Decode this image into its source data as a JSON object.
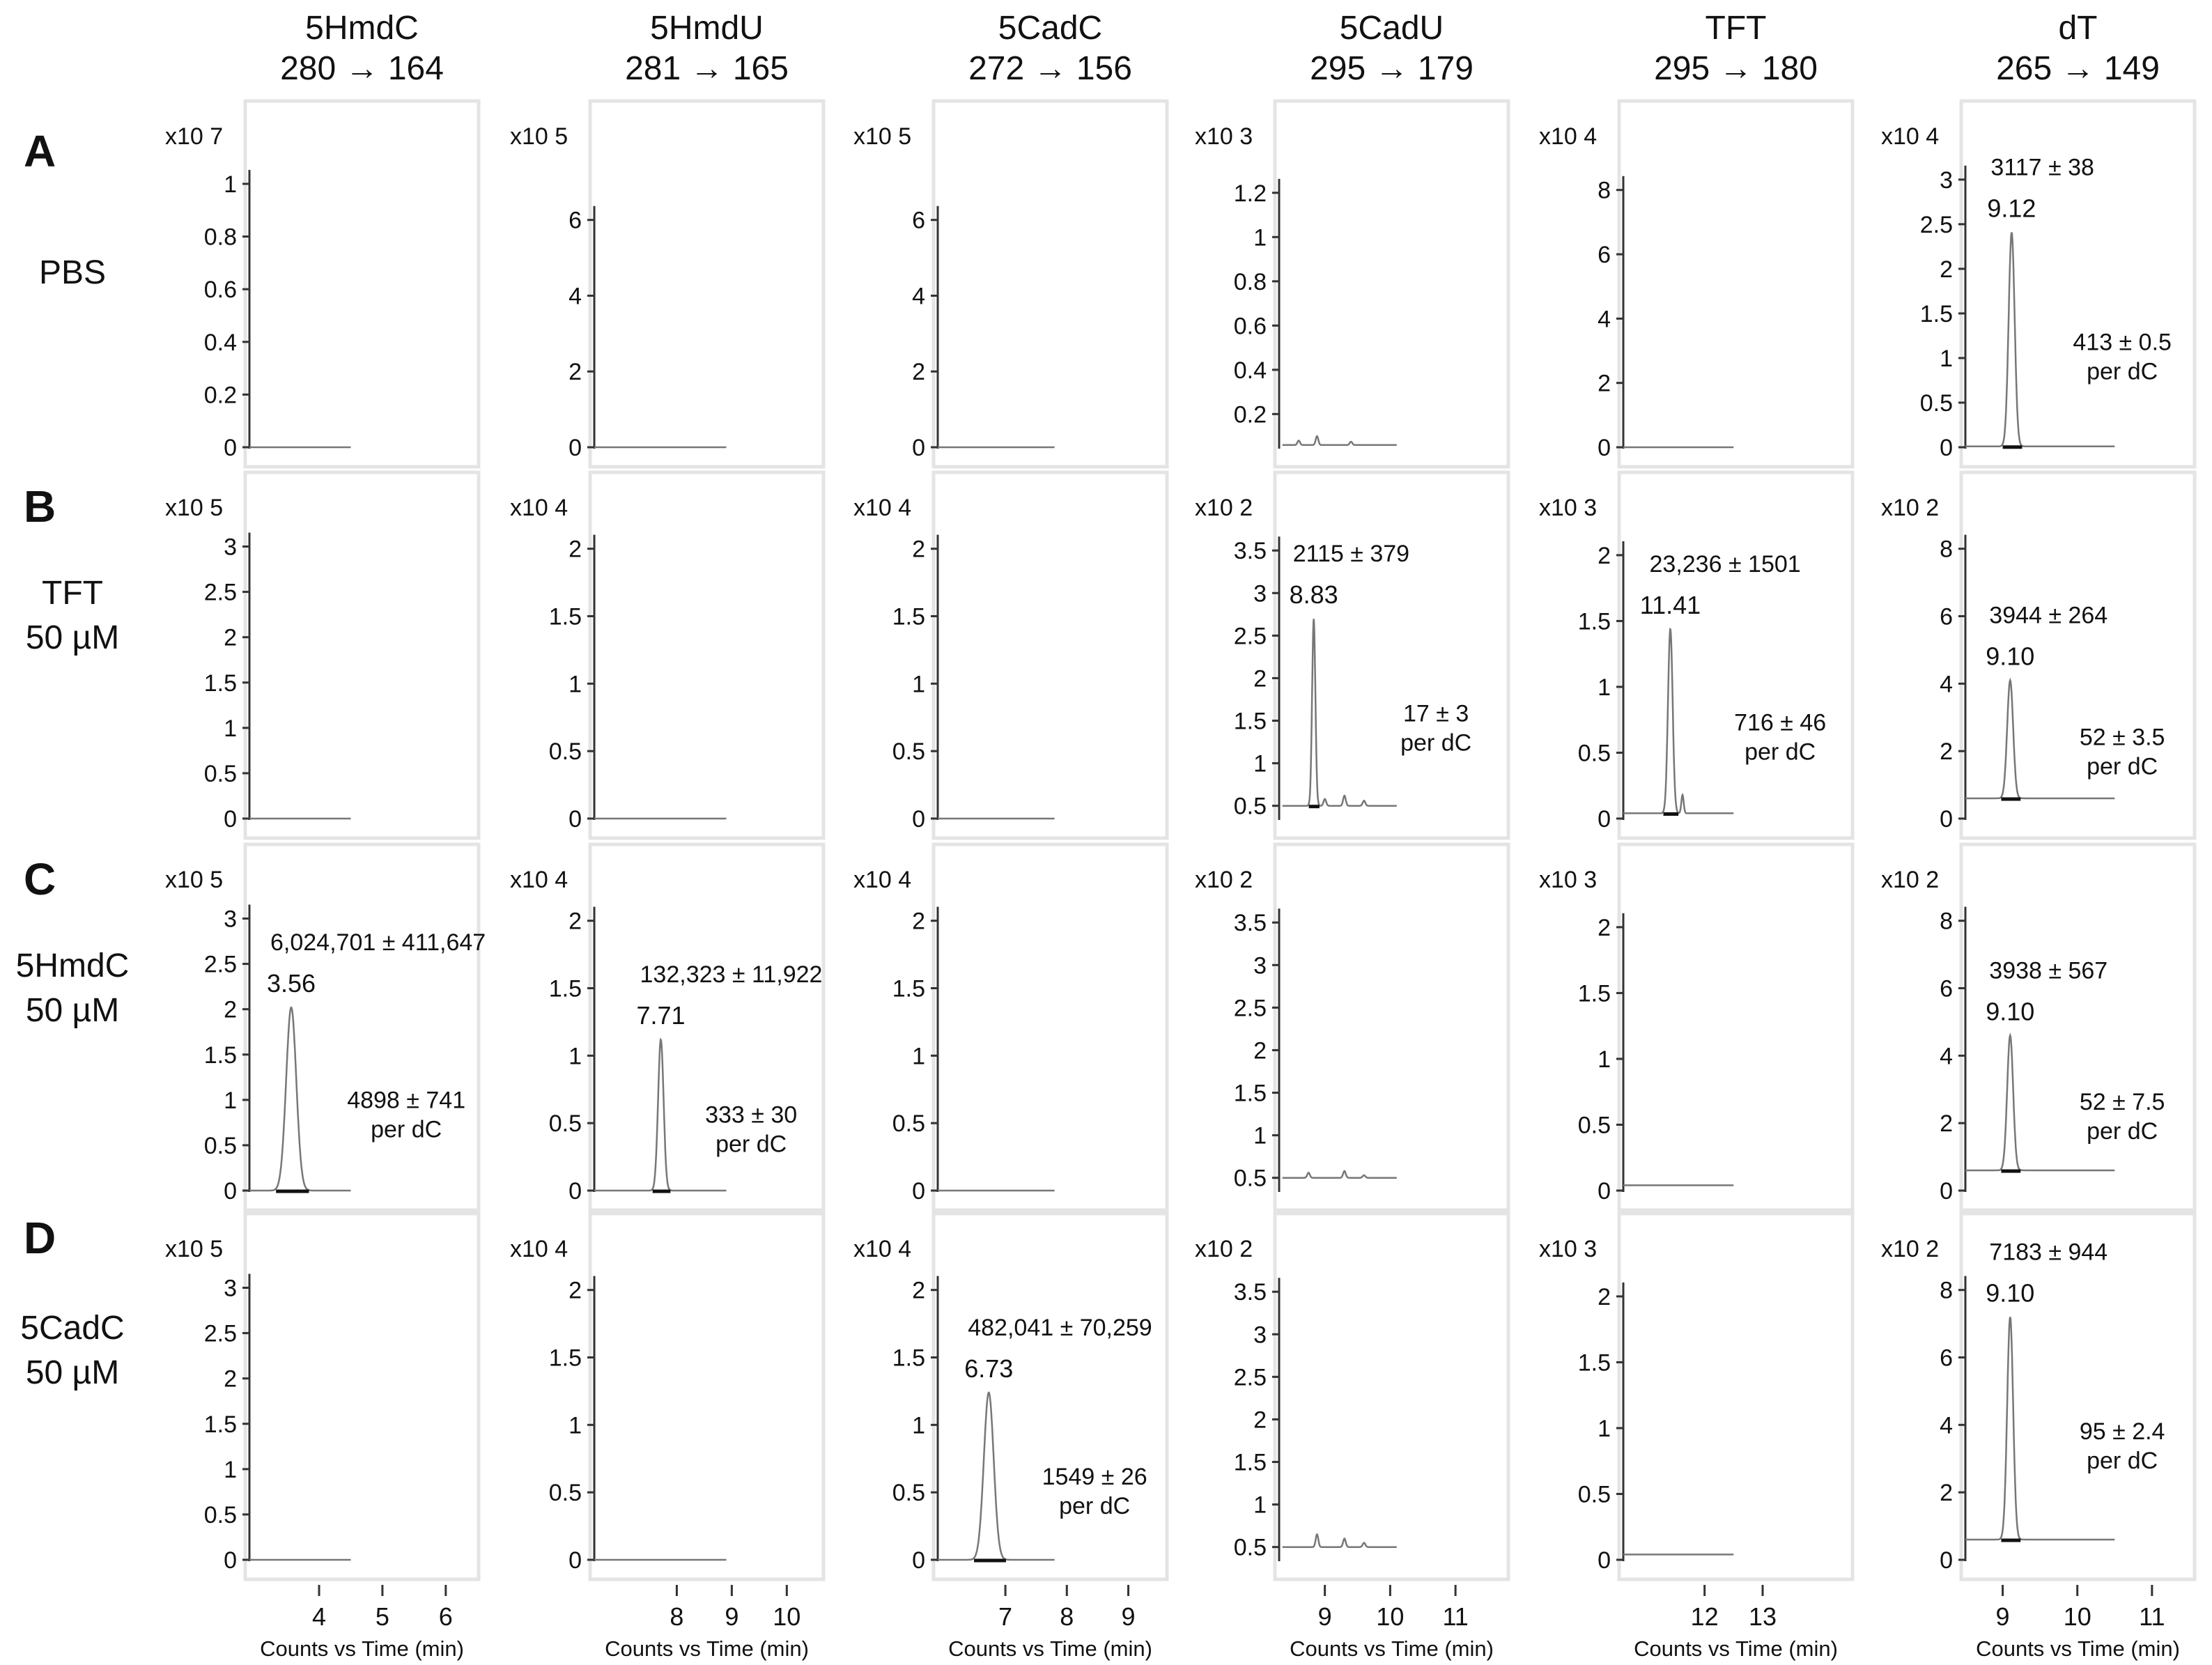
{
  "columns": [
    {
      "name": "5HmdC",
      "transition": "280 → 164"
    },
    {
      "name": "5HmdU",
      "transition": "281 → 165"
    },
    {
      "name": "5CadC",
      "transition": "272 → 156"
    },
    {
      "name": "5CadU",
      "transition": "295 → 179"
    },
    {
      "name": "TFT",
      "transition": "295 → 180"
    },
    {
      "name": "dT",
      "transition": "265 → 149"
    }
  ],
  "rows": [
    {
      "letter": "A",
      "label": [
        "PBS"
      ]
    },
    {
      "letter": "B",
      "label": [
        "TFT",
        "50 µM"
      ]
    },
    {
      "letter": "C",
      "label": [
        "5HmdC",
        "50 µM"
      ]
    },
    {
      "letter": "D",
      "label": [
        "5CadC",
        "50 µM"
      ]
    }
  ],
  "x_axis": {
    "label": "Counts vs Time (min)",
    "columns": [
      {
        "xlim": [
          2.9,
          6.2
        ],
        "ticks": [
          4,
          5,
          6
        ]
      },
      {
        "xlim": [
          6.5,
          10.3
        ],
        "ticks": [
          8,
          9,
          10
        ]
      },
      {
        "xlim": [
          5.9,
          9.3
        ],
        "ticks": [
          7,
          8,
          9
        ]
      },
      {
        "xlim": [
          8.3,
          11.5
        ],
        "ticks": [
          9,
          10,
          11
        ]
      },
      {
        "xlim": [
          10.6,
          14.2
        ],
        "ticks": [
          12,
          13
        ]
      },
      {
        "xlim": [
          8.5,
          11.3
        ],
        "ticks": [
          9,
          10,
          11
        ]
      }
    ]
  },
  "chart_data": {
    "type": "line",
    "title": "",
    "panels": [
      {
        "row": "A",
        "col": "5HmdC",
        "y_scale": "x10 7",
        "y_ticks": [
          "0",
          "0.2",
          "0.4",
          "0.6",
          "0.8",
          "1"
        ],
        "ylim": [
          0,
          1.05
        ],
        "trace_x": [
          2.9,
          4.5
        ],
        "baseline": 0,
        "peaks": []
      },
      {
        "row": "A",
        "col": "5HmdU",
        "y_scale": "x10 5",
        "y_ticks": [
          "0",
          "2",
          "4",
          "6"
        ],
        "ylim": [
          0,
          7.3
        ],
        "trace_x": [
          6.5,
          8.9
        ],
        "baseline": 0,
        "peaks": []
      },
      {
        "row": "A",
        "col": "5CadC",
        "y_scale": "x10 5",
        "y_ticks": [
          "0",
          "2",
          "4",
          "6"
        ],
        "ylim": [
          0,
          7.3
        ],
        "trace_x": [
          5.9,
          7.8
        ],
        "baseline": 0,
        "peaks": []
      },
      {
        "row": "A",
        "col": "5CadU",
        "y_scale": "x10 3",
        "y_ticks": [
          "0.2",
          "0.4",
          "0.6",
          "0.8",
          "1",
          "1.2"
        ],
        "ylim": [
          0.05,
          1.3
        ],
        "trace_x": [
          8.35,
          10.1
        ],
        "baseline": 0.06,
        "noise": [
          [
            8.6,
            0.08
          ],
          [
            8.88,
            0.1
          ],
          [
            9.4,
            0.075
          ]
        ],
        "peaks": []
      },
      {
        "row": "A",
        "col": "TFT",
        "y_scale": "x10 4",
        "y_ticks": [
          "0",
          "2",
          "4",
          "6",
          "8"
        ],
        "ylim": [
          0,
          8.6
        ],
        "trace_x": [
          10.6,
          12.5
        ],
        "baseline": 0,
        "peaks": []
      },
      {
        "row": "A",
        "col": "dT",
        "y_scale": "x10 4",
        "y_ticks": [
          "0",
          "0.5",
          "1",
          "1.5",
          "2",
          "2.5",
          "3"
        ],
        "ylim": [
          0,
          3.1
        ],
        "trace_x": [
          8.5,
          10.5
        ],
        "baseline": 0.01,
        "peaks": [
          {
            "rt": "9.12",
            "x": 9.12,
            "height": 2.4,
            "width": 0.04
          }
        ],
        "area": "3117 ± 38",
        "per_dc": [
          "413 ± 0.5",
          "per dC"
        ]
      },
      {
        "row": "B",
        "col": "5HmdC",
        "y_scale": "x10 5",
        "y_ticks": [
          "0",
          "0.5",
          "1",
          "1.5",
          "2",
          "2.5",
          "3"
        ],
        "ylim": [
          0,
          3.05
        ],
        "trace_x": [
          2.9,
          4.5
        ],
        "baseline": 0,
        "peaks": []
      },
      {
        "row": "B",
        "col": "5HmdU",
        "y_scale": "x10 4",
        "y_ticks": [
          "0",
          "0.5",
          "1",
          "1.5",
          "2"
        ],
        "ylim": [
          0,
          2.05
        ],
        "trace_x": [
          6.5,
          8.9
        ],
        "baseline": 0,
        "peaks": []
      },
      {
        "row": "B",
        "col": "5CadC",
        "y_scale": "x10 4",
        "y_ticks": [
          "0",
          "0.5",
          "1",
          "1.5",
          "2"
        ],
        "ylim": [
          0,
          2.05
        ],
        "trace_x": [
          5.9,
          7.8
        ],
        "baseline": 0,
        "peaks": []
      },
      {
        "row": "B",
        "col": "5CadU",
        "y_scale": "x10 2",
        "y_ticks": [
          "0.5",
          "1",
          "1.5",
          "2",
          "2.5",
          "3",
          "3.5"
        ],
        "ylim": [
          0.35,
          3.6
        ],
        "trace_x": [
          8.35,
          10.1
        ],
        "baseline": 0.5,
        "noise": [
          [
            9.0,
            0.58
          ],
          [
            9.3,
            0.62
          ],
          [
            9.6,
            0.56
          ]
        ],
        "peaks": [
          {
            "rt": "8.83",
            "x": 8.83,
            "height": 2.2,
            "width": 0.025
          }
        ],
        "area": "2115 ± 379",
        "per_dc": [
          "17 ± 3",
          "per dC"
        ]
      },
      {
        "row": "B",
        "col": "TFT",
        "y_scale": "x10 3",
        "y_ticks": [
          "0",
          "0.5",
          "1",
          "1.5",
          "2"
        ],
        "ylim": [
          0,
          2.1
        ],
        "trace_x": [
          10.6,
          12.5
        ],
        "baseline": 0.04,
        "noise": [
          [
            11.62,
            0.18
          ]
        ],
        "peaks": [
          {
            "rt": "11.41",
            "x": 11.41,
            "height": 1.4,
            "width": 0.04
          }
        ],
        "area": "23,236 ± 1501",
        "per_dc": [
          "716 ± 46",
          "per dC"
        ]
      },
      {
        "row": "B",
        "col": "dT",
        "y_scale": "x10 2",
        "y_ticks": [
          "0",
          "2",
          "4",
          "6",
          "8"
        ],
        "ylim": [
          0,
          8.2
        ],
        "trace_x": [
          8.5,
          10.5
        ],
        "baseline": 0.6,
        "peaks": [
          {
            "rt": "9.10",
            "x": 9.1,
            "height": 3.5,
            "width": 0.04
          }
        ],
        "area": "3944 ± 264",
        "per_dc": [
          "52 ± 3.5",
          "per dC"
        ]
      },
      {
        "row": "C",
        "col": "5HmdC",
        "y_scale": "x10 5",
        "y_ticks": [
          "0",
          "0.5",
          "1",
          "1.5",
          "2",
          "2.5",
          "3"
        ],
        "ylim": [
          0,
          3.05
        ],
        "trace_x": [
          2.9,
          4.5
        ],
        "baseline": 0,
        "peaks": [
          {
            "rt": "3.56",
            "x": 3.56,
            "height": 2.02,
            "width": 0.08
          }
        ],
        "area": "6,024,701 ± 411,647",
        "per_dc": [
          "4898 ± 741",
          "per dC"
        ]
      },
      {
        "row": "C",
        "col": "5HmdU",
        "y_scale": "x10 4",
        "y_ticks": [
          "0",
          "0.5",
          "1",
          "1.5",
          "2"
        ],
        "ylim": [
          0,
          2.05
        ],
        "trace_x": [
          6.5,
          8.9
        ],
        "baseline": 0,
        "peaks": [
          {
            "rt": "7.71",
            "x": 7.71,
            "height": 1.12,
            "width": 0.05
          }
        ],
        "area": "132,323 ± 11,922",
        "per_dc": [
          "333 ± 30",
          "per dC"
        ]
      },
      {
        "row": "C",
        "col": "5CadC",
        "y_scale": "x10 4",
        "y_ticks": [
          "0",
          "0.5",
          "1",
          "1.5",
          "2"
        ],
        "ylim": [
          0,
          2.05
        ],
        "trace_x": [
          5.9,
          7.8
        ],
        "baseline": 0,
        "peaks": []
      },
      {
        "row": "C",
        "col": "5CadU",
        "y_scale": "x10 2",
        "y_ticks": [
          "0.5",
          "1",
          "1.5",
          "2",
          "2.5",
          "3",
          "3.5"
        ],
        "ylim": [
          0.35,
          3.6
        ],
        "trace_x": [
          8.35,
          10.1
        ],
        "baseline": 0.5,
        "noise": [
          [
            8.75,
            0.56
          ],
          [
            9.3,
            0.58
          ],
          [
            9.6,
            0.53
          ]
        ],
        "peaks": []
      },
      {
        "row": "C",
        "col": "TFT",
        "y_scale": "x10 3",
        "y_ticks": [
          "0",
          "0.5",
          "1",
          "1.5",
          "2"
        ],
        "ylim": [
          0,
          2.1
        ],
        "trace_x": [
          10.6,
          12.5
        ],
        "baseline": 0.04,
        "peaks": []
      },
      {
        "row": "C",
        "col": "dT",
        "y_scale": "x10 2",
        "y_ticks": [
          "0",
          "2",
          "4",
          "6",
          "8"
        ],
        "ylim": [
          0,
          8.2
        ],
        "trace_x": [
          8.5,
          10.5
        ],
        "baseline": 0.6,
        "peaks": [
          {
            "rt": "9.10",
            "x": 9.1,
            "height": 4.0,
            "width": 0.04
          }
        ],
        "area": "3938 ± 567",
        "per_dc": [
          "52 ± 7.5",
          "per dC"
        ]
      },
      {
        "row": "D",
        "col": "5HmdC",
        "y_scale": "x10 5",
        "y_ticks": [
          "0",
          "0.5",
          "1",
          "1.5",
          "2",
          "2.5",
          "3"
        ],
        "ylim": [
          0,
          3.05
        ],
        "trace_x": [
          2.9,
          4.5
        ],
        "baseline": 0,
        "peaks": []
      },
      {
        "row": "D",
        "col": "5HmdU",
        "y_scale": "x10 4",
        "y_ticks": [
          "0",
          "0.5",
          "1",
          "1.5",
          "2"
        ],
        "ylim": [
          0,
          2.05
        ],
        "trace_x": [
          6.5,
          8.9
        ],
        "baseline": 0,
        "peaks": []
      },
      {
        "row": "D",
        "col": "5CadC",
        "y_scale": "x10 4",
        "y_ticks": [
          "0",
          "0.5",
          "1",
          "1.5",
          "2"
        ],
        "ylim": [
          0,
          2.05
        ],
        "trace_x": [
          5.9,
          7.8
        ],
        "baseline": 0,
        "peaks": [
          {
            "rt": "6.73",
            "x": 6.73,
            "height": 1.24,
            "width": 0.08
          }
        ],
        "area": "482,041 ± 70,259",
        "per_dc": [
          "1549 ± 26",
          "per dC"
        ]
      },
      {
        "row": "D",
        "col": "5CadU",
        "y_scale": "x10 2",
        "y_ticks": [
          "0.5",
          "1",
          "1.5",
          "2",
          "2.5",
          "3",
          "3.5"
        ],
        "ylim": [
          0.35,
          3.6
        ],
        "trace_x": [
          8.35,
          10.1
        ],
        "baseline": 0.5,
        "noise": [
          [
            8.88,
            0.65
          ],
          [
            9.3,
            0.6
          ],
          [
            9.6,
            0.55
          ]
        ],
        "peaks": []
      },
      {
        "row": "D",
        "col": "TFT",
        "y_scale": "x10 3",
        "y_ticks": [
          "0",
          "0.5",
          "1",
          "1.5",
          "2"
        ],
        "ylim": [
          0,
          2.1
        ],
        "trace_x": [
          10.6,
          12.5
        ],
        "baseline": 0.04,
        "peaks": []
      },
      {
        "row": "D",
        "col": "dT",
        "y_scale": "x10 2",
        "y_ticks": [
          "0",
          "2",
          "4",
          "6",
          "8"
        ],
        "ylim": [
          0,
          8.2
        ],
        "trace_x": [
          8.5,
          10.5
        ],
        "baseline": 0.6,
        "peaks": [
          {
            "rt": "9.10",
            "x": 9.1,
            "height": 6.6,
            "width": 0.04
          }
        ],
        "area": "7183 ± 944",
        "per_dc": [
          "95 ± 2.4",
          "per dC"
        ]
      }
    ]
  }
}
